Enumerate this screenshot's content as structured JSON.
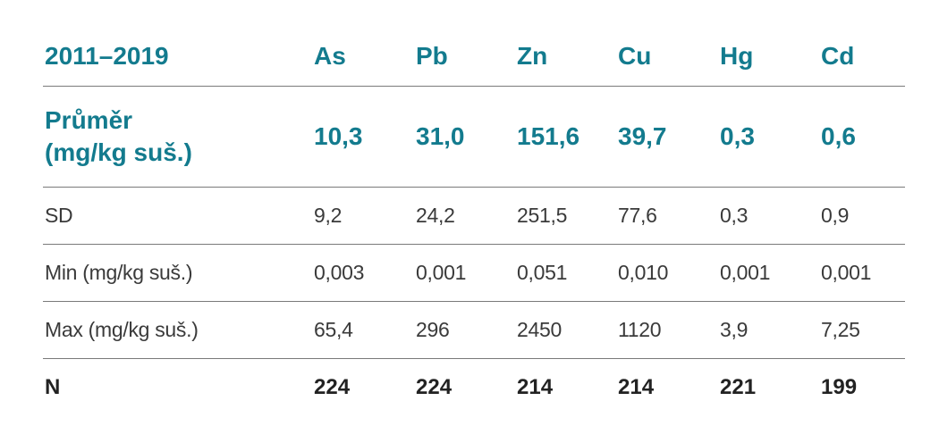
{
  "table": {
    "header": {
      "period": "2011–2019",
      "elements": [
        "As",
        "Pb",
        "Zn",
        "Cu",
        "Hg",
        "Cd"
      ]
    },
    "mean_row": {
      "label_line1": "Průměr",
      "label_line2": "(mg/kg suš.)",
      "values": [
        "10,3",
        "31,0",
        "151,6",
        "39,7",
        "0,3",
        "0,6"
      ]
    },
    "rows": [
      {
        "label": "SD",
        "values": [
          "9,2",
          "24,2",
          "251,5",
          "77,6",
          "0,3",
          "0,9"
        ]
      },
      {
        "label": "Min (mg/kg suš.)",
        "values": [
          "0,003",
          "0,001",
          "0,051",
          "0,010",
          "0,001",
          "0,001"
        ]
      },
      {
        "label": "Max (mg/kg suš.)",
        "values": [
          "65,4",
          "296",
          "2450",
          "1120",
          "3,9",
          "7,25"
        ]
      }
    ],
    "n_row": {
      "label": "N",
      "values": [
        "224",
        "224",
        "214",
        "214",
        "221",
        "199"
      ]
    }
  },
  "colors": {
    "accent": "#137b8e",
    "text": "#3a3a3a",
    "rule": "#7a7a7a"
  }
}
